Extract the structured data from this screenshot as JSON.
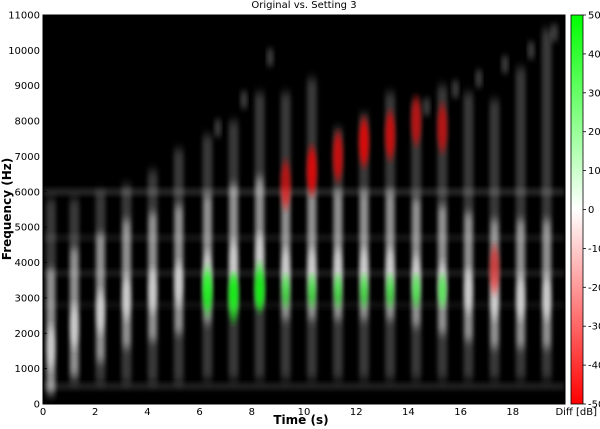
{
  "chart_data": {
    "type": "heatmap",
    "title": "Original vs. Setting 3",
    "xlabel": "Time (s)",
    "ylabel": "Frequency (Hz)",
    "xlim": [
      0,
      20
    ],
    "ylim": [
      0,
      11000
    ],
    "x_ticks": [
      "0",
      "2",
      "4",
      "6",
      "8",
      "10",
      "12",
      "14",
      "16",
      "18"
    ],
    "y_ticks": [
      "0",
      "1000",
      "2000",
      "3000",
      "4000",
      "5000",
      "6000",
      "7000",
      "8000",
      "9000",
      "10000",
      "11000"
    ],
    "colorbar": {
      "label": "Diff [dB]",
      "range": [
        -50,
        50
      ],
      "ticks": [
        "50",
        "40",
        "30",
        "20",
        "10",
        "0",
        "-10",
        "-20",
        "-30",
        "-40",
        "-50"
      ],
      "colors": {
        "positive": "#00ff00",
        "zero": "#ffffff",
        "negative": "#ff0000"
      }
    },
    "background_color": "#000000",
    "grid": false,
    "note_colors": {
      "base": "#ffffff",
      "positive_diff": "#00ff00",
      "negative_diff": "#ff0000"
    },
    "notes": [
      {
        "t": 0.3,
        "f_low": 300,
        "f_high": 5800,
        "peak_f": 1600,
        "diff_db": 0,
        "diff_f": 0
      },
      {
        "t": 1.2,
        "f_low": 600,
        "f_high": 5800,
        "peak_f": 2200,
        "diff_db": 0,
        "diff_f": 0
      },
      {
        "t": 2.2,
        "f_low": 600,
        "f_high": 6000,
        "peak_f": 2600,
        "diff_db": 0,
        "diff_f": 0
      },
      {
        "t": 3.2,
        "f_low": 600,
        "f_high": 6200,
        "peak_f": 3000,
        "diff_db": 0,
        "diff_f": 0
      },
      {
        "t": 4.2,
        "f_low": 600,
        "f_high": 6600,
        "peak_f": 3200,
        "diff_db": 0,
        "diff_f": 0
      },
      {
        "t": 5.2,
        "f_low": 600,
        "f_high": 7200,
        "peak_f": 3400,
        "diff_db": 0,
        "diff_f": 0
      },
      {
        "t": 6.3,
        "f_low": 700,
        "f_high": 7600,
        "peak_f": 3700,
        "diff_db": 10,
        "diff_f": 3200
      },
      {
        "t": 7.3,
        "f_low": 700,
        "f_high": 8000,
        "peak_f": 4000,
        "diff_db": 15,
        "diff_f": 3000
      },
      {
        "t": 8.3,
        "f_low": 700,
        "f_high": 8800,
        "peak_f": 4200,
        "diff_db": 15,
        "diff_f": 3300
      },
      {
        "t": 9.3,
        "f_low": 700,
        "f_high": 8800,
        "peak_f": 3800,
        "diff_db": -15,
        "diff_f": 6200
      },
      {
        "t": 10.3,
        "f_low": 700,
        "f_high": 9200,
        "peak_f": 3800,
        "diff_db": -25,
        "diff_f": 6600
      },
      {
        "t": 11.3,
        "f_low": 700,
        "f_high": 7800,
        "peak_f": 3800,
        "diff_db": -20,
        "diff_f": 7000
      },
      {
        "t": 12.3,
        "f_low": 700,
        "f_high": 8200,
        "peak_f": 3800,
        "diff_db": -25,
        "diff_f": 7400
      },
      {
        "t": 13.3,
        "f_low": 700,
        "f_high": 8800,
        "peak_f": 3800,
        "diff_db": -20,
        "diff_f": 7600
      },
      {
        "t": 14.3,
        "f_low": 700,
        "f_high": 8600,
        "peak_f": 3600,
        "diff_db": -15,
        "diff_f": 8000
      },
      {
        "t": 15.3,
        "f_low": 700,
        "f_high": 9000,
        "peak_f": 3400,
        "diff_db": -15,
        "diff_f": 7800
      },
      {
        "t": 16.3,
        "f_low": 700,
        "f_high": 8800,
        "peak_f": 3200,
        "diff_db": 0,
        "diff_f": 0
      },
      {
        "t": 17.3,
        "f_low": 700,
        "f_high": 8600,
        "peak_f": 3000,
        "diff_db": -10,
        "diff_f": 3800
      },
      {
        "t": 18.3,
        "f_low": 700,
        "f_high": 9500,
        "peak_f": 3000,
        "diff_db": 0,
        "diff_f": 0
      },
      {
        "t": 19.3,
        "f_low": 700,
        "f_high": 10600,
        "peak_f": 3000,
        "diff_db": 0,
        "diff_f": 0
      }
    ],
    "harmonic_partials": [
      {
        "t": 6.7,
        "f": 7800
      },
      {
        "t": 7.7,
        "f": 8600
      },
      {
        "t": 8.7,
        "f": 9800
      },
      {
        "t": 14.7,
        "f": 8400
      },
      {
        "t": 15.8,
        "f": 8900
      },
      {
        "t": 16.7,
        "f": 9200
      },
      {
        "t": 17.7,
        "f": 9600
      },
      {
        "t": 18.7,
        "f": 10000
      },
      {
        "t": 19.6,
        "f": 10500
      }
    ],
    "horizontal_bands": [
      {
        "f": 6000,
        "level": 0.18
      },
      {
        "f": 4700,
        "level": 0.1
      },
      {
        "f": 3700,
        "level": 0.12
      },
      {
        "f": 2800,
        "level": 0.07
      },
      {
        "f": 500,
        "level": 0.15
      }
    ]
  }
}
